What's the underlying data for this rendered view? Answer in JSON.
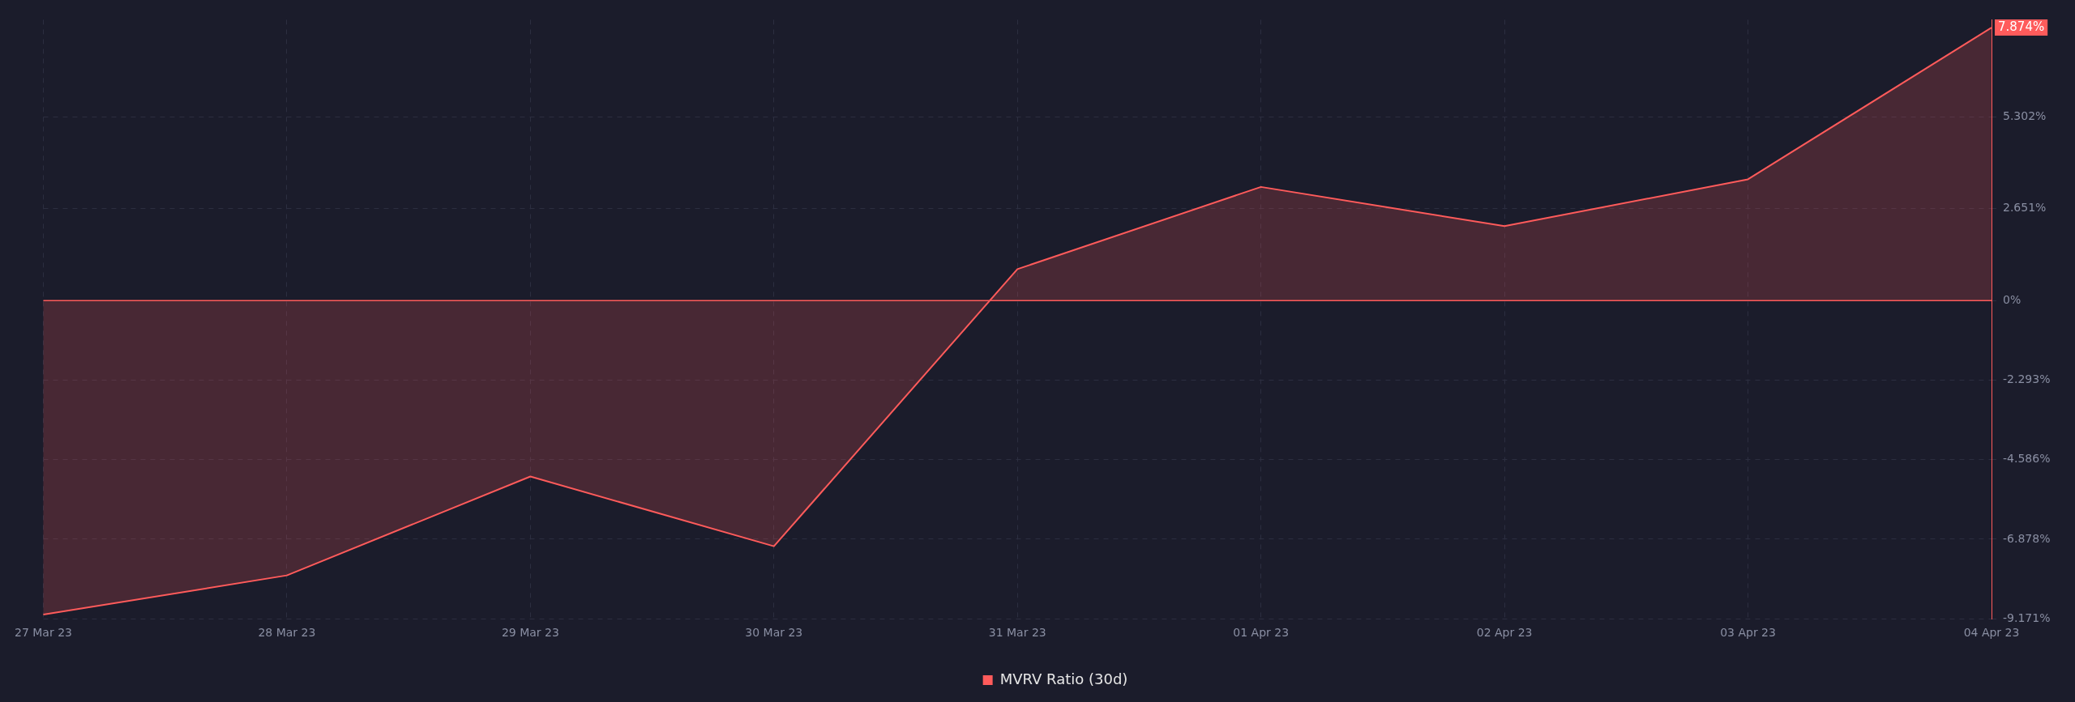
{
  "chart_data": {
    "type": "area",
    "categories": [
      "27 Mar 23",
      "28 Mar 23",
      "29 Mar 23",
      "30 Mar 23",
      "31 Mar 23",
      "01 Apr 23",
      "02 Apr 23",
      "03 Apr 23",
      "04 Apr 23"
    ],
    "series": [
      {
        "name": "MVRV Ratio (30d)",
        "color": "#ff5b5b",
        "values": [
          -9.05,
          -7.92,
          -5.07,
          -7.08,
          0.91,
          3.28,
          2.15,
          3.5,
          7.874
        ]
      }
    ],
    "ylim": [
      -9.171,
      8.1
    ],
    "yticks": [
      {
        "value": 5.302,
        "label": "5.302%"
      },
      {
        "value": 2.651,
        "label": "2.651%"
      },
      {
        "value": 0,
        "label": "0%"
      },
      {
        "value": -2.293,
        "label": "-2.293%"
      },
      {
        "value": -4.586,
        "label": "-4.586%"
      },
      {
        "value": -6.878,
        "label": "-6.878%"
      },
      {
        "value": -9.171,
        "label": "-9.171%"
      }
    ],
    "ref_lines": [
      {
        "axis": "y",
        "value": 0,
        "color": "#ff5b5b"
      }
    ],
    "annotations": [
      {
        "text": "7.874%",
        "x": "04 Apr 23",
        "y": 7.874
      }
    ],
    "grid": true,
    "legend": "bottom",
    "marker": "none",
    "line_style": "solid"
  }
}
